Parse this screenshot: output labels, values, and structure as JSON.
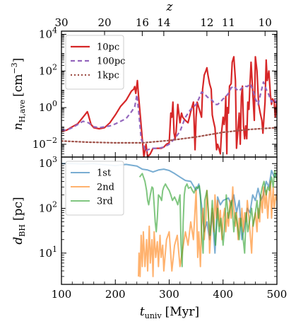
{
  "chart_data": [
    {
      "type": "line",
      "panel": "top",
      "ylabel_main": "n",
      "ylabel_sub": "H,ave",
      "ylabel_unit": "[cm",
      "ylabel_unit_exp": "−3",
      "ylabel_unit_end": "]",
      "yscale": "log",
      "ylim": [
        0.002,
        15000
      ],
      "xlim": [
        100,
        500
      ],
      "yticks": [
        {
          "value": 0.01,
          "base": "10",
          "exp": "−2"
        },
        {
          "value": 1,
          "base": "10",
          "exp": "0"
        },
        {
          "value": 100,
          "base": "10",
          "exp": "2"
        },
        {
          "value": 10000,
          "base": "10",
          "exp": "4"
        }
      ],
      "top_axis_label": "z",
      "top_ticks": [
        {
          "label": "30",
          "t": 100
        },
        {
          "label": "20",
          "t": 180
        },
        {
          "label": "16",
          "t": 250
        },
        {
          "label": "14",
          "t": 290
        },
        {
          "label": "12",
          "t": 370
        },
        {
          "label": "11",
          "t": 410
        },
        {
          "label": "10",
          "t": 478
        }
      ],
      "legend_position": "upper-left",
      "series": [
        {
          "name": "10pc",
          "color": "#d62728",
          "dash": "solid",
          "x": [
            100,
            110,
            120,
            130,
            140,
            148,
            150,
            155,
            160,
            170,
            180,
            190,
            200,
            210,
            220,
            230,
            234,
            236,
            238,
            241,
            243,
            246,
            250,
            253,
            257,
            260,
            265,
            270,
            275,
            280,
            285,
            290,
            295,
            300,
            303,
            305,
            307,
            309,
            311,
            313,
            316,
            320,
            323,
            325,
            330,
            335,
            340,
            345,
            348,
            350,
            352,
            355,
            358,
            360,
            362,
            365,
            368,
            370,
            372,
            375,
            378,
            380,
            382,
            385,
            388,
            390,
            393,
            395,
            397,
            400,
            402,
            404,
            405,
            407,
            408,
            410,
            412,
            415,
            417,
            420,
            423,
            425,
            430,
            432,
            434,
            436,
            438,
            440,
            442,
            444,
            446,
            448,
            450,
            452,
            455,
            458,
            460,
            463,
            466,
            469,
            472,
            474,
            476,
            478,
            480,
            482,
            485,
            488,
            490,
            492,
            495,
            497,
            500
          ],
          "y": [
            0.05,
            0.06,
            0.09,
            0.13,
            0.3,
            0.6,
            0.4,
            0.12,
            0.08,
            0.07,
            0.08,
            0.15,
            0.4,
            1.2,
            2.5,
            8,
            10,
            14,
            6,
            30,
            5,
            0.5,
            0.02,
            0.002,
            0.01,
            0.002,
            0.003,
            0.006,
            0.006,
            0.006,
            0.006,
            0.007,
            0.01,
            0.012,
            0.5,
            0.3,
            2,
            0.04,
            0.02,
            0.05,
            1.5,
            0.15,
            0.5,
            0.3,
            0.2,
            0.15,
            0.6,
            2,
            0.005,
            0.3,
            2,
            1,
            0.5,
            0.3,
            10,
            60,
            100,
            150,
            60,
            20,
            10,
            0.4,
            0.2,
            0.08,
            0.005,
            0.01,
            0.005,
            0.003,
            0.04,
            0.3,
            0.12,
            0.5,
            4,
            0.003,
            1,
            0.5,
            15,
            20,
            300,
            600,
            30,
            0.006,
            0.5,
            0.01,
            4,
            15,
            0.1,
            0.02,
            0.1,
            0.02,
            2,
            0.8,
            20,
            300,
            8,
            0.2,
            600,
            100,
            1.5,
            0.5,
            0.2,
            0.04,
            0.3,
            2,
            400,
            30,
            100,
            5,
            1.5,
            3,
            2,
            0.3,
            2.5
          ]
        },
        {
          "name": "100pc",
          "color": "#9467bd",
          "dash": "6,4",
          "x": [
            100,
            110,
            120,
            130,
            140,
            150,
            160,
            170,
            180,
            190,
            200,
            210,
            220,
            230,
            236,
            240,
            244,
            248,
            252,
            256,
            260,
            270,
            280,
            290,
            300,
            310,
            320,
            330,
            340,
            350,
            355,
            360,
            365,
            370,
            375,
            380,
            385,
            390,
            395,
            400,
            405,
            410,
            415,
            420,
            425,
            430,
            435,
            440,
            445,
            450,
            455,
            460,
            465,
            470,
            475,
            480,
            485,
            490,
            495,
            500
          ],
          "y": [
            0.06,
            0.06,
            0.08,
            0.12,
            0.18,
            0.15,
            0.09,
            0.08,
            0.09,
            0.1,
            0.13,
            0.18,
            0.25,
            0.6,
            1.1,
            5,
            0.4,
            0.02,
            0.01,
            0.004,
            0.005,
            0.006,
            0.006,
            0.007,
            0.01,
            0.02,
            0.05,
            0.3,
            0.8,
            1.5,
            3,
            7,
            6,
            4,
            3,
            2.5,
            1.5,
            1.5,
            2,
            3,
            4,
            6,
            12,
            15,
            10,
            8,
            12,
            15,
            14,
            20,
            10,
            3,
            1.5,
            6,
            25,
            10,
            5,
            2,
            3,
            1.5
          ]
        },
        {
          "name": "1kpc",
          "color": "#a0524a",
          "dash": "2,3",
          "x": [
            100,
            150,
            200,
            250,
            300,
            350,
            400,
            450,
            500
          ],
          "y": [
            0.015,
            0.013,
            0.012,
            0.012,
            0.016,
            0.025,
            0.045,
            0.065,
            0.08
          ]
        }
      ]
    },
    {
      "type": "line",
      "panel": "bottom",
      "ylabel_main": "d",
      "ylabel_sub": "BH",
      "ylabel_unit": "[pc]",
      "xlabel_main": "t",
      "xlabel_sub": "univ",
      "xlabel_unit": "[Myr]",
      "yscale": "log",
      "ylim": [
        2,
        1400
      ],
      "xlim": [
        100,
        500
      ],
      "xticks": [
        "100",
        "200",
        "300",
        "400",
        "500"
      ],
      "yticks": [
        {
          "value": 10,
          "base": "10",
          "exp": "1"
        },
        {
          "value": 100,
          "base": "10",
          "exp": "2"
        },
        {
          "value": 1000,
          "base": "10",
          "exp": "3"
        }
      ],
      "legend_position": "upper-left",
      "series": [
        {
          "name": "1st",
          "color": "#1f77b4",
          "dash": "solid",
          "x": [
            100,
            120,
            140,
            160,
            180,
            200,
            220,
            240,
            250,
            260,
            270,
            280,
            290,
            300,
            310,
            320,
            330,
            340,
            350,
            355,
            360,
            365,
            370,
            375,
            380,
            385,
            390,
            395,
            400,
            405,
            410,
            415,
            420,
            425,
            430,
            435,
            440,
            445,
            450,
            455,
            460,
            465,
            470,
            475,
            480,
            485,
            490,
            495,
            500
          ],
          "y": [
            1000,
            1000,
            980,
            1000,
            950,
            900,
            960,
            880,
            750,
            720,
            650,
            720,
            750,
            700,
            600,
            500,
            420,
            400,
            250,
            350,
            120,
            30,
            50,
            20,
            80,
            10,
            180,
            120,
            150,
            160,
            170,
            120,
            200,
            80,
            150,
            20,
            40,
            100,
            80,
            200,
            150,
            280,
            150,
            200,
            400,
            300,
            700,
            500,
            600
          ]
        },
        {
          "name": "2nd",
          "color": "#ff7f0e",
          "dash": "solid",
          "x": [
            243,
            244,
            246,
            248,
            250,
            252,
            255,
            258,
            260,
            263,
            265,
            268,
            270,
            272,
            275,
            278,
            280,
            283,
            285,
            288,
            290,
            295,
            300,
            305,
            310,
            315,
            320,
            325,
            330,
            335,
            340,
            345,
            350,
            353,
            355,
            358,
            360,
            363,
            365,
            368,
            370,
            373,
            375,
            378,
            380,
            383,
            385,
            388,
            390,
            393,
            395,
            398,
            400,
            403,
            405,
            408,
            410,
            413,
            415,
            418,
            420,
            423,
            425,
            428,
            430,
            433,
            435,
            438,
            440,
            443,
            445,
            448,
            450,
            453,
            455,
            458,
            460,
            463,
            465,
            468,
            470,
            473,
            475,
            478,
            480,
            483,
            485,
            488,
            490,
            493,
            495,
            498,
            500
          ],
          "y": [
            3,
            10,
            3,
            25,
            5,
            30,
            5,
            20,
            4,
            40,
            6,
            20,
            3,
            30,
            8,
            18,
            5,
            25,
            8,
            15,
            4,
            20,
            30,
            4,
            15,
            25,
            5,
            12,
            30,
            15,
            50,
            20,
            250,
            8,
            30,
            5,
            40,
            100,
            20,
            60,
            250,
            80,
            10,
            40,
            100,
            30,
            200,
            60,
            150,
            40,
            90,
            20,
            60,
            100,
            30,
            80,
            40,
            150,
            60,
            300,
            100,
            40,
            80,
            20,
            60,
            40,
            100,
            30,
            80,
            50,
            150,
            60,
            30,
            10,
            40,
            60,
            80,
            30,
            100,
            50,
            200,
            80,
            300,
            100,
            250,
            60,
            150,
            400,
            60,
            300,
            100,
            200,
            150
          ]
        },
        {
          "name": "3rd",
          "color": "#2ca02c",
          "dash": "solid",
          "x": [
            245,
            250,
            255,
            258,
            260,
            262,
            265,
            268,
            270,
            272,
            274,
            276,
            278,
            280,
            283,
            286,
            288,
            290,
            293,
            296,
            300,
            303,
            306,
            310,
            313,
            316,
            320,
            322,
            324,
            326,
            328,
            330,
            333,
            336,
            340,
            343,
            346,
            350,
            353,
            356,
            358,
            360,
            363,
            366,
            370,
            373,
            376,
            380,
            383,
            386,
            390,
            393,
            396,
            400,
            403,
            406,
            410,
            413,
            416,
            420,
            423,
            426,
            430,
            433,
            436,
            440,
            443,
            446,
            450,
            453,
            456,
            460,
            463,
            466,
            470,
            473,
            476,
            480,
            483,
            486,
            490,
            493,
            496,
            500
          ],
          "y": [
            500,
            600,
            400,
            250,
            150,
            120,
            200,
            300,
            280,
            120,
            50,
            30,
            60,
            200,
            180,
            150,
            250,
            300,
            350,
            300,
            250,
            200,
            150,
            180,
            150,
            120,
            200,
            15,
            5,
            50,
            200,
            300,
            350,
            280,
            300,
            250,
            220,
            300,
            280,
            320,
            200,
            30,
            10,
            150,
            250,
            60,
            25,
            150,
            40,
            15,
            100,
            30,
            60,
            15,
            40,
            200,
            60,
            100,
            150,
            30,
            80,
            50,
            20,
            60,
            30,
            10,
            80,
            30,
            60,
            100,
            40,
            80,
            150,
            60,
            200,
            300,
            400,
            200,
            300,
            250,
            500,
            300,
            700,
            400
          ]
        }
      ]
    }
  ]
}
